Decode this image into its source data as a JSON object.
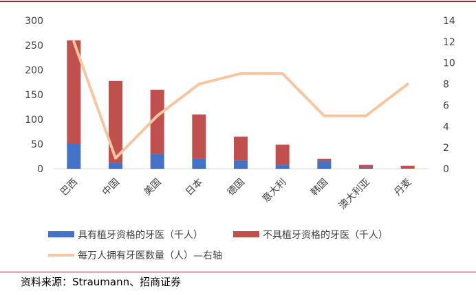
{
  "chart_data": {
    "type": "bar",
    "categories": [
      "巴西",
      "中国",
      "美国",
      "日本",
      "德国",
      "意大利",
      "韩国",
      "澳大利亚",
      "丹麦"
    ],
    "series": [
      {
        "name": "具有植牙资格的牙医（千人）",
        "type": "bar",
        "stacked": true,
        "axis": "left",
        "color": "#4472c4",
        "values": [
          50,
          12,
          30,
          20,
          17,
          8,
          16,
          2,
          1
        ]
      },
      {
        "name": "不具植牙资格的牙医（千人）",
        "type": "bar",
        "stacked": true,
        "axis": "left",
        "color": "#c0504d",
        "values": [
          210,
          166,
          130,
          90,
          48,
          41,
          4,
          6,
          5
        ]
      },
      {
        "name": "每万人拥有牙医数量（人）—右轴",
        "type": "line",
        "axis": "right",
        "color": "#f7c59f",
        "values": [
          12,
          1,
          5,
          8,
          9,
          9,
          5,
          5,
          8
        ]
      }
    ],
    "y_left": {
      "min": 0,
      "max": 300,
      "ticks": [
        0,
        50,
        100,
        150,
        200,
        250,
        300
      ]
    },
    "y_right": {
      "min": 0,
      "max": 14,
      "ticks": [
        0,
        2,
        4,
        6,
        8,
        10,
        12,
        14
      ]
    },
    "grid": false,
    "legend": "bottom"
  },
  "source": "资料来源：Straumann、招商证券"
}
